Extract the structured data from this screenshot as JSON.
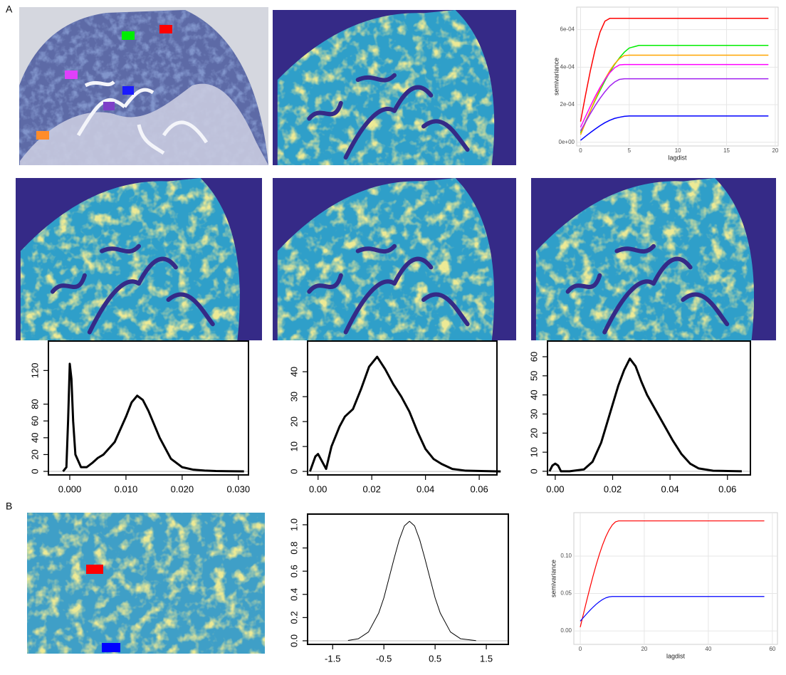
{
  "panel_labels": [
    "A",
    "B"
  ],
  "chart_data": [
    {
      "type": "line",
      "x_label": "lagdist",
      "y_label": "semivariance",
      "grid": true,
      "x": [
        0,
        0.5,
        1,
        1.5,
        2,
        2.5,
        3,
        3.5,
        4,
        4.5,
        5,
        6,
        8,
        10,
        12,
        14,
        16,
        18,
        19.3
      ],
      "series": [
        {
          "color": "#ff0000",
          "values": [
            0.00011,
            0.000249,
            0.00038,
            0.000495,
            0.000587,
            0.000645,
            0.00066,
            0.00066,
            0.00066,
            0.00066,
            0.00066,
            0.00066,
            0.00066,
            0.00066,
            0.00066,
            0.00066,
            0.00066,
            0.00066,
            0.00066
          ]
        },
        {
          "color": "#00ee00",
          "values": [
            5e-05,
            0.000109,
            0.000166,
            0.000223,
            0.000276,
            0.000327,
            0.000373,
            0.000415,
            0.00045,
            0.00048,
            0.000502,
            0.000516,
            0.000516,
            0.000516,
            0.000516,
            0.000516,
            0.000516,
            0.000516,
            0.000516
          ]
        },
        {
          "color": "#ffa500",
          "values": [
            4e-05,
            0.000104,
            0.000167,
            0.000228,
            0.000284,
            0.000336,
            0.000381,
            0.000418,
            0.000446,
            0.000462,
            0.000464,
            0.000464,
            0.000464,
            0.000464,
            0.000464,
            0.000464,
            0.000464,
            0.000464,
            0.000464
          ]
        },
        {
          "color": "#ff00ff",
          "values": [
            8e-05,
            0.000136,
            0.000191,
            0.000244,
            0.000292,
            0.000334,
            0.00037,
            0.000397,
            0.000412,
            0.000414,
            0.000414,
            0.000414,
            0.000414,
            0.000414,
            0.000414,
            0.000414,
            0.000414,
            0.000414,
            0.000414
          ]
        },
        {
          "color": "#a020f0",
          "values": [
            6e-05,
            0.000106,
            0.000152,
            0.000195,
            0.000234,
            0.000269,
            0.000299,
            0.000321,
            0.000335,
            0.000338,
            0.000338,
            0.000338,
            0.000338,
            0.000338,
            0.000338,
            0.000338,
            0.000338,
            0.000338,
            0.000338
          ]
        },
        {
          "color": "#0000ff",
          "values": [
            1e-05,
            3.1e-05,
            5.1e-05,
            7e-05,
            8.8e-05,
            0.000104,
            0.000117,
            0.000127,
            0.000133,
            0.000138,
            0.00014,
            0.00014,
            0.00014,
            0.00014,
            0.00014,
            0.00014,
            0.00014,
            0.00014,
            0.00014
          ]
        }
      ],
      "xlim": [
        -0.4,
        20.3
      ],
      "xticks": [
        0,
        5,
        10,
        15,
        20
      ],
      "ylim": [
        -2e-05,
        0.00072
      ],
      "yticks": [
        {
          "value": 0,
          "label": "0e+00"
        },
        {
          "value": 0.0002,
          "label": "2e-04"
        },
        {
          "value": 0.0004,
          "label": "4e-04"
        },
        {
          "value": 0.0006,
          "label": "6e-04"
        }
      ]
    },
    {
      "type": "line",
      "grid": false,
      "color": "#000000",
      "x": [
        -0.0012,
        -0.0006,
        -0.0003,
        0,
        0.0003,
        0.0006,
        0.001,
        0.002,
        0.003,
        0.004,
        0.005,
        0.006,
        0.008,
        0.01,
        0.011,
        0.012,
        0.013,
        0.014,
        0.016,
        0.018,
        0.02,
        0.022,
        0.024,
        0.026,
        0.028,
        0.031
      ],
      "values": [
        0,
        5,
        60,
        128,
        110,
        60,
        20,
        5,
        5,
        10,
        16,
        20,
        35,
        65,
        82,
        90,
        85,
        72,
        40,
        15,
        5,
        2,
        1,
        0.5,
        0.3,
        0
      ],
      "xlim": [
        -0.0038,
        0.0318
      ],
      "xticks": [
        {
          "value": 0,
          "label": "0.000"
        },
        {
          "value": 0.01,
          "label": "0.010"
        },
        {
          "value": 0.02,
          "label": "0.020"
        },
        {
          "value": 0.03,
          "label": "0.030"
        }
      ],
      "ylim": [
        -4.2,
        155
      ],
      "yticks": [
        0,
        20,
        40,
        60,
        80,
        120
      ]
    },
    {
      "type": "line",
      "grid": false,
      "color": "#000000",
      "x": [
        -0.003,
        -0.001,
        0,
        0.001,
        0.003,
        0.005,
        0.008,
        0.01,
        0.013,
        0.016,
        0.019,
        0.022,
        0.025,
        0.028,
        0.031,
        0.034,
        0.037,
        0.04,
        0.043,
        0.046,
        0.05,
        0.055,
        0.068
      ],
      "values": [
        0,
        6,
        7,
        5,
        1,
        10,
        18,
        22,
        25,
        33,
        42,
        46,
        41,
        35,
        30,
        24,
        16,
        9,
        5,
        3,
        1,
        0.3,
        0
      ],
      "xlim": [
        -0.0039,
        0.0666
      ],
      "xticks": [
        {
          "value": 0,
          "label": "0.00"
        },
        {
          "value": 0.02,
          "label": "0.02"
        },
        {
          "value": 0.04,
          "label": "0.04"
        },
        {
          "value": 0.06,
          "label": "0.06"
        }
      ],
      "ylim": [
        -1.4,
        52.3
      ],
      "yticks": [
        0,
        10,
        20,
        30,
        40
      ]
    },
    {
      "type": "line",
      "grid": false,
      "color": "#000000",
      "x": [
        -0.002,
        -0.001,
        0,
        0.001,
        0.002,
        0.005,
        0.01,
        0.013,
        0.016,
        0.019,
        0.022,
        0.024,
        0.026,
        0.028,
        0.03,
        0.032,
        0.035,
        0.038,
        0.041,
        0.044,
        0.047,
        0.05,
        0.055,
        0.065
      ],
      "values": [
        0,
        3,
        4,
        3,
        0,
        0,
        1,
        5,
        15,
        30,
        45,
        53,
        59,
        55,
        47,
        40,
        32,
        24,
        16,
        9,
        4,
        1.5,
        0.3,
        0
      ],
      "xlim": [
        -0.0027,
        0.068
      ],
      "xticks": [
        {
          "value": 0,
          "label": "0.00"
        },
        {
          "value": 0.02,
          "label": "0.02"
        },
        {
          "value": 0.04,
          "label": "0.04"
        },
        {
          "value": 0.06,
          "label": "0.06"
        }
      ],
      "ylim": [
        -1.9,
        68.2
      ],
      "yticks": [
        0,
        10,
        20,
        30,
        40,
        50,
        60
      ]
    },
    {
      "type": "line",
      "grid": false,
      "color": "#000000",
      "x": [
        -1.2,
        -1,
        -0.8,
        -0.6,
        -0.5,
        -0.4,
        -0.3,
        -0.2,
        -0.1,
        0,
        0.1,
        0.2,
        0.3,
        0.4,
        0.5,
        0.6,
        0.8,
        1,
        1.3
      ],
      "values": [
        0.003,
        0.017,
        0.076,
        0.24,
        0.37,
        0.54,
        0.71,
        0.87,
        0.99,
        1.03,
        0.99,
        0.87,
        0.71,
        0.54,
        0.37,
        0.24,
        0.076,
        0.017,
        0.001
      ],
      "xlim": [
        -1.99,
        1.93
      ],
      "xticks": [
        -1.5,
        -0.5,
        0.5,
        1.5
      ],
      "ylim": [
        -0.031,
        1.092
      ],
      "yticks": [
        {
          "value": 0,
          "label": "0.0"
        },
        0.2,
        0.4,
        0.6,
        0.8,
        {
          "value": 1,
          "label": "1.0"
        }
      ]
    },
    {
      "type": "line",
      "x_label": "lagdist",
      "y_label": "semivariance",
      "grid": true,
      "x": [
        0,
        1,
        2,
        3,
        4,
        5,
        6,
        7,
        8,
        9,
        10,
        11,
        12,
        14,
        20,
        30,
        40,
        50,
        57.5
      ],
      "series": [
        {
          "color": "#ff0000",
          "values": [
            0.005,
            0.0227,
            0.0402,
            0.0571,
            0.0734,
            0.0886,
            0.1026,
            0.1152,
            0.126,
            0.1348,
            0.1415,
            0.1457,
            0.147,
            0.147,
            0.147,
            0.147,
            0.147,
            0.147,
            0.147
          ]
        },
        {
          "color": "#0000ff",
          "values": [
            0.013,
            0.0179,
            0.0228,
            0.0274,
            0.0317,
            0.0357,
            0.0391,
            0.042,
            0.0442,
            0.0455,
            0.046,
            0.046,
            0.046,
            0.046,
            0.046,
            0.046,
            0.046,
            0.046,
            0.046
          ]
        }
      ],
      "xlim": [
        -2,
        61.6
      ],
      "xticks": [
        0,
        20,
        40,
        60
      ],
      "ylim": [
        -0.018,
        0.158
      ],
      "yticks": [
        {
          "value": 0,
          "label": "0.00"
        },
        0.05,
        {
          "value": 0.1,
          "label": "0.10"
        }
      ]
    }
  ]
}
